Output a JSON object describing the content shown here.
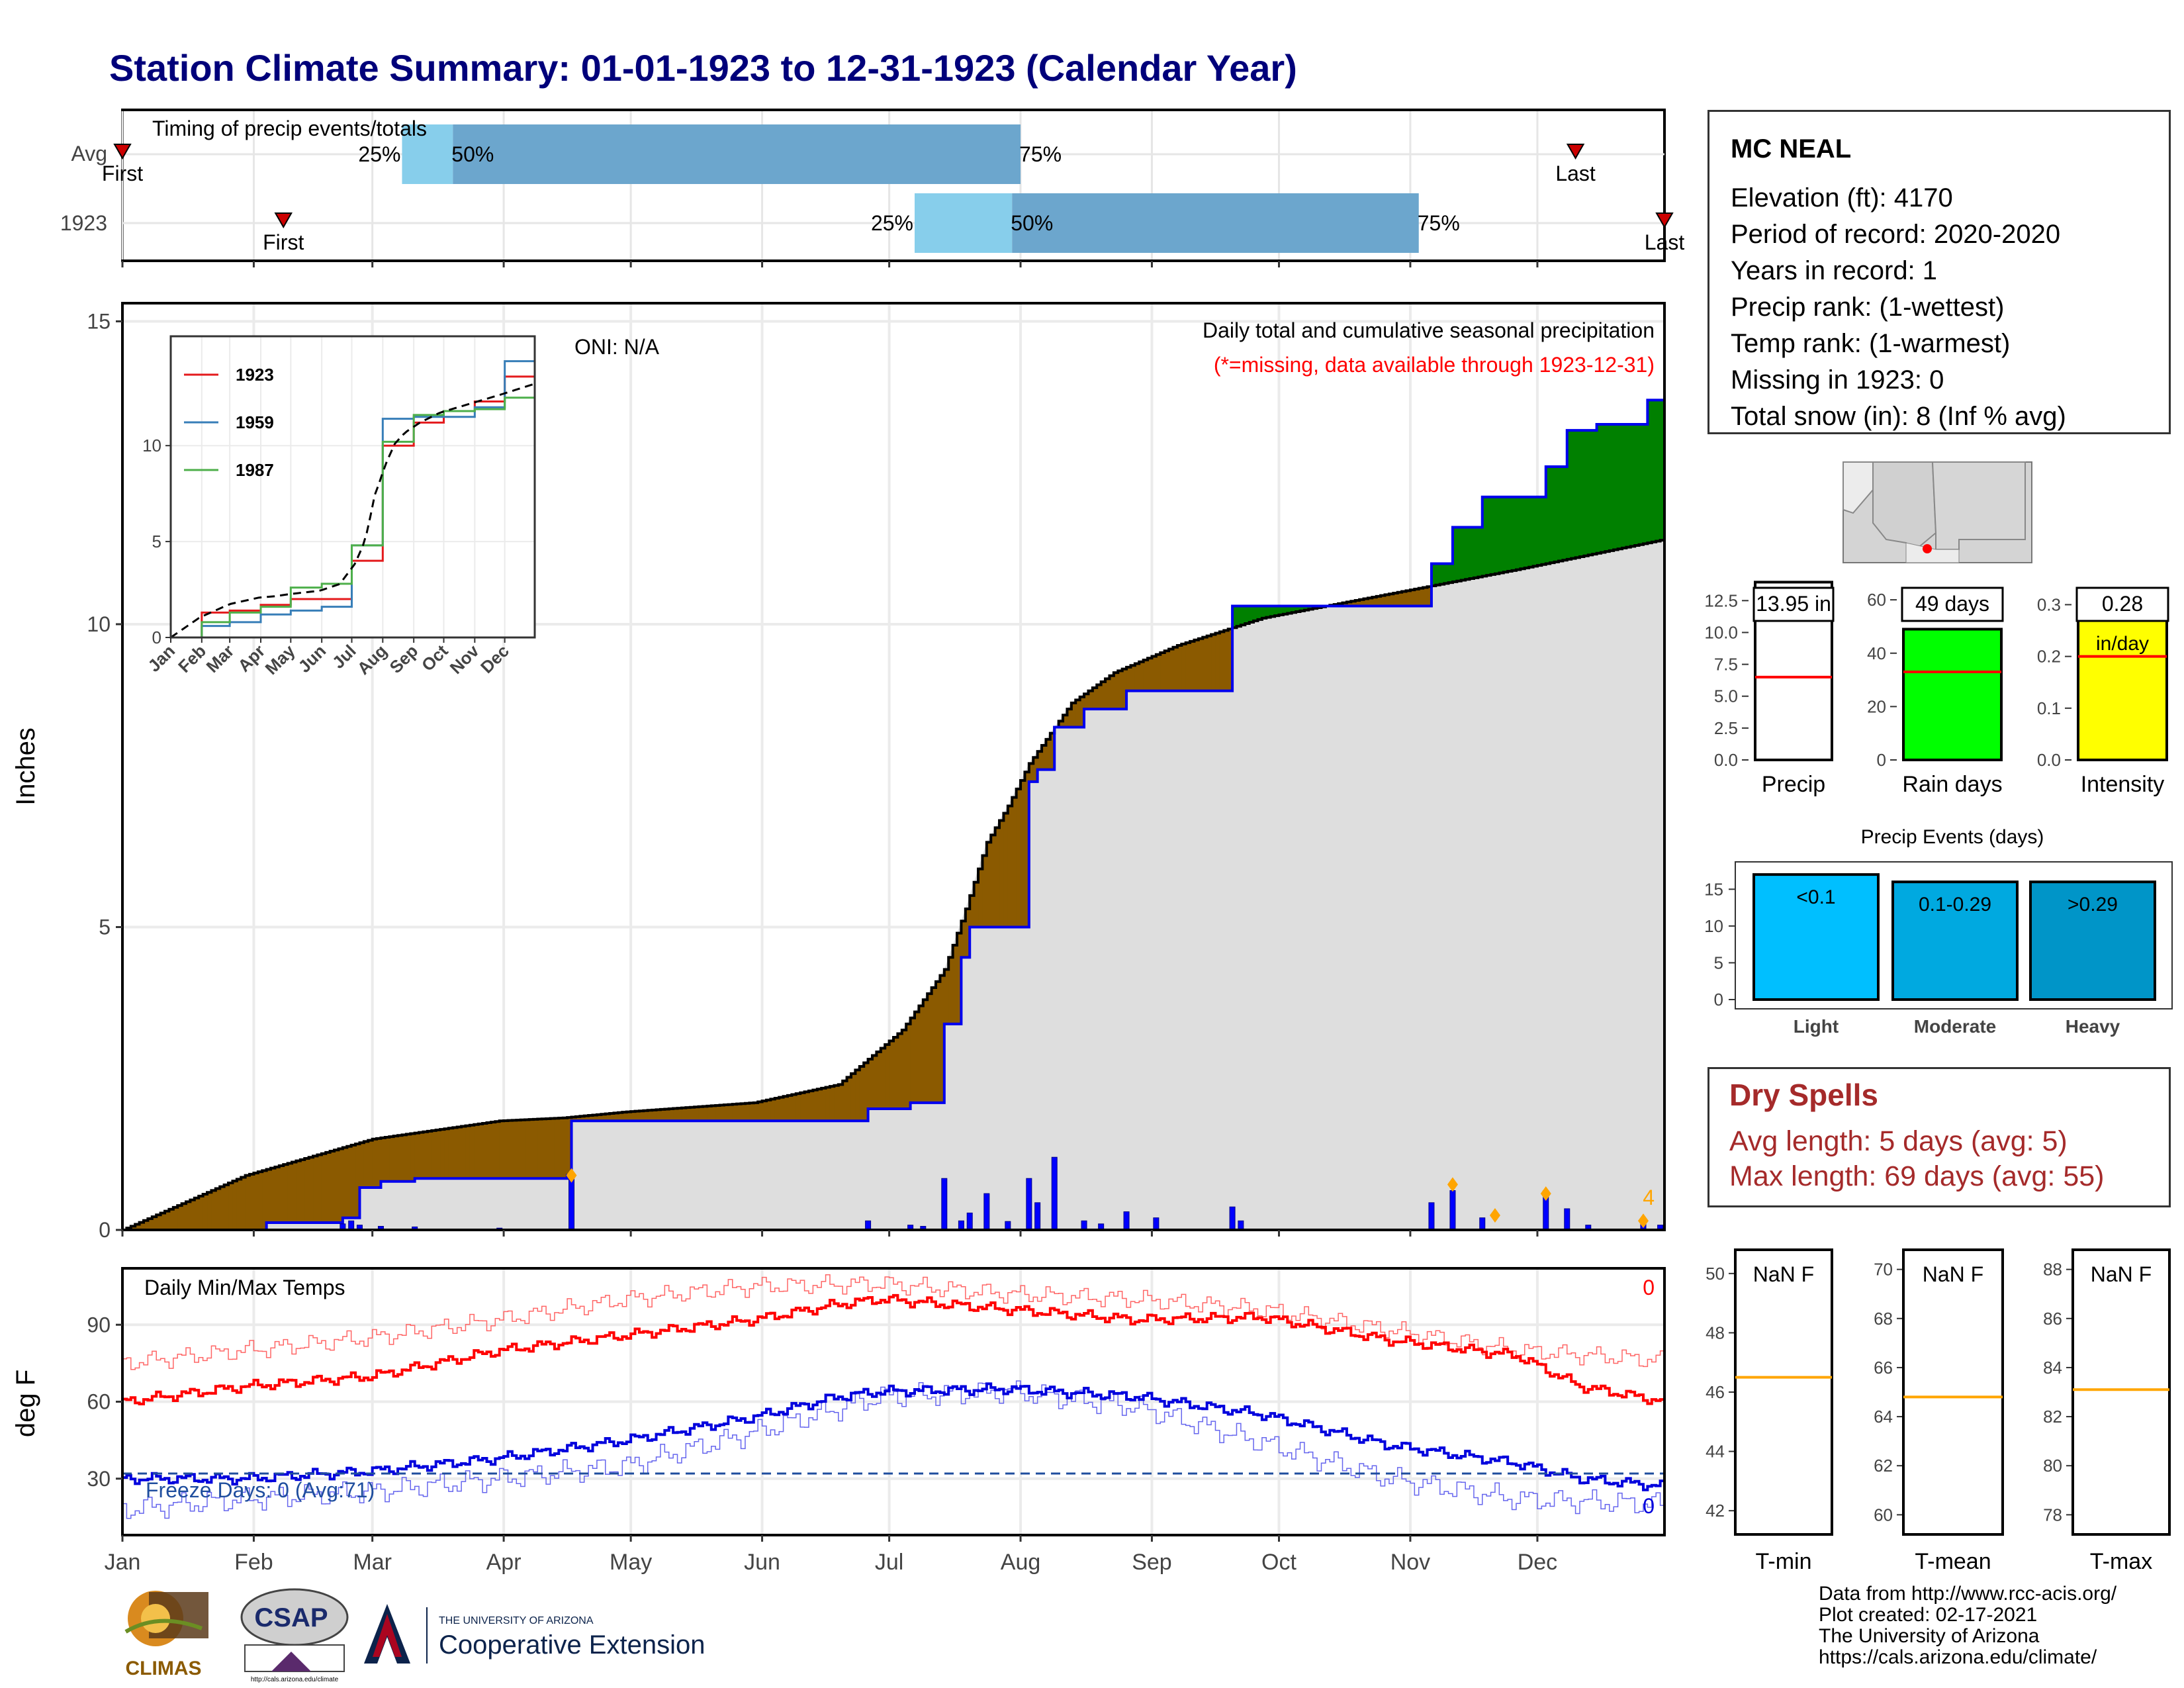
{
  "title": "Station Climate Summary: 01-01-1923 to 12-31-1923 (Calendar Year)",
  "timing_panel": {
    "title": "Timing of precip events/totals",
    "rows": [
      {
        "label": "Avg",
        "first_label": "First",
        "last_label": "Last",
        "first_date": "Jan 1",
        "last_date": "Dec 10",
        "p25_label": "25%",
        "p50_label": "50%",
        "p75_label": "75%",
        "p25": "Mar 8",
        "p50": "Mar 20",
        "p75": "Aug 1"
      },
      {
        "label": "1923",
        "first_label": "First",
        "last_label": "Last",
        "first_date": "Feb 8",
        "last_date": "Dec 31",
        "p25_label": "25%",
        "p50_label": "50%",
        "p75_label": "75%",
        "p25": "Jul 7",
        "p50": "Jul 30",
        "p75": "Nov 3"
      }
    ]
  },
  "precip_panel": {
    "title": "Daily total and cumulative seasonal precipitation",
    "subtitle": "(*=missing, data available through 1923-12-31)",
    "oni": "ONI: N/A",
    "ylabel": "Inches",
    "yticks": [
      "0",
      "5",
      "10",
      "15"
    ],
    "event_count_label": "4",
    "colors": {
      "above": "#008000",
      "below": "#8b5a00",
      "obs_line": "#0000ee",
      "avg_fill": "#dddddd",
      "snow_marker": "#ffa500"
    }
  },
  "inset": {
    "yticks": [
      "0",
      "5",
      "10"
    ],
    "months": [
      "Jan",
      "Feb",
      "Mar",
      "Apr",
      "May",
      "Jun",
      "Jul",
      "Aug",
      "Sep",
      "Oct",
      "Nov",
      "Dec"
    ],
    "legend": [
      {
        "name": "1923",
        "color": "#e41a1c"
      },
      {
        "name": "1959",
        "color": "#377eb8"
      },
      {
        "name": "1987",
        "color": "#4daf4a"
      }
    ]
  },
  "temp_panel": {
    "title": "Daily Min/Max Temps",
    "ylabel": "deg F",
    "yticks": [
      "30",
      "60",
      "90"
    ],
    "freeze_label": "Freeze Days: 0 (Avg:71)",
    "max_count_label": "0",
    "min_count_label": "0",
    "colors": {
      "max": "#ff0000",
      "min": "#0000dd",
      "freeze_line": "#1f4e9e"
    }
  },
  "x_months": [
    "Jan",
    "Feb",
    "Mar",
    "Apr",
    "May",
    "Jun",
    "Jul",
    "Aug",
    "Sep",
    "Oct",
    "Nov",
    "Dec"
  ],
  "station": {
    "name": "MC NEAL",
    "lines": [
      "Elevation (ft): 4170",
      "Period of record: 2020-2020",
      "Years in record: 1",
      "Precip rank:  (1-wettest)",
      "Temp rank:  (1-warmest)",
      "Missing in 1923: 0",
      "Total snow (in): 8 (Inf % avg)"
    ]
  },
  "summary_bars": [
    {
      "label": "Precip",
      "value_label": "13.95 in",
      "value": 13.95,
      "avg": 6.5,
      "yticks": [
        "0.0",
        "2.5",
        "5.0",
        "7.5",
        "10.0",
        "12.5"
      ],
      "ymax": 13.4,
      "color": "#ffffff"
    },
    {
      "label": "Rain days",
      "value_label": "49 days",
      "value": 49,
      "avg": 33,
      "yticks": [
        "0",
        "20",
        "40",
        "60"
      ],
      "ymax": 64,
      "color": "#00ff00"
    },
    {
      "label": "Intensity",
      "value_label": "0.28",
      "unit_label": "in/day",
      "value": 0.28,
      "avg": 0.2,
      "yticks": [
        "0.0",
        "0.1",
        "0.2",
        "0.3"
      ],
      "ymax": 0.33,
      "color": "#ffff00"
    }
  ],
  "events": {
    "title": "Precip Events (days)",
    "yticks": [
      "0",
      "5",
      "10",
      "15"
    ],
    "bars": [
      {
        "category": "Light",
        "label": "<0.1",
        "value": 17,
        "color": "#00bfff"
      },
      {
        "category": "Moderate",
        "label": "0.1-0.29",
        "value": 16,
        "color": "#00a9e0"
      },
      {
        "category": "Heavy",
        "label": ">0.29",
        "value": 16,
        "color": "#0095c8"
      }
    ]
  },
  "dry_spells": {
    "title": "Dry Spells",
    "avg": "Avg length: 5 days (avg: 5)",
    "max": "Max length: 69 days (avg: 55)"
  },
  "temp_boxes": [
    {
      "label": "T-min",
      "value_label": "NaN F",
      "yticks": [
        "42",
        "44",
        "46",
        "48",
        "50"
      ],
      "avg": 46.5
    },
    {
      "label": "T-mean",
      "value_label": "NaN F",
      "yticks": [
        "60",
        "62",
        "64",
        "66",
        "68",
        "70"
      ],
      "avg": 64.8
    },
    {
      "label": "T-max",
      "value_label": "NaN F",
      "yticks": [
        "78",
        "80",
        "82",
        "84",
        "86",
        "88"
      ],
      "avg": 83.1
    }
  ],
  "credits": [
    "Data from http://www.rcc-acis.org/",
    "Plot created: 02-17-2021",
    "The University of Arizona",
    "https://cals.arizona.edu/climate/"
  ],
  "logos": {
    "climas": "CLIMAS",
    "csap": "CSAP",
    "csap_url": "http://cals.arizona.edu/climate",
    "ua_small": "THE UNIVERSITY OF ARIZONA",
    "ua_big": "Cooperative Extension"
  },
  "chart_data": [
    {
      "type": "area",
      "title": "Daily total and cumulative seasonal precipitation",
      "ylabel": "Inches",
      "ylim": [
        0,
        15.3
      ],
      "x_unit": "day of year",
      "avg_cumulative": {
        "x": [
          1,
          30,
          60,
          90,
          105,
          120,
          150,
          170,
          185,
          195,
          200,
          205,
          210,
          215,
          220,
          225,
          235,
          250,
          270,
          300,
          330,
          365
        ],
        "y": [
          0,
          0.9,
          1.5,
          1.8,
          1.85,
          1.95,
          2.1,
          2.4,
          3.3,
          4.3,
          5.3,
          6.4,
          7.0,
          7.7,
          8.2,
          8.7,
          9.2,
          9.65,
          10.1,
          10.5,
          10.9,
          11.4
        ]
      },
      "obs_cumulative": {
        "x": [
          1,
          35,
          53,
          57,
          62,
          70,
          106,
          107,
          177,
          187,
          195,
          199,
          201,
          205,
          215,
          217,
          221,
          228,
          238,
          263,
          310,
          315,
          322,
          337,
          342,
          349,
          361,
          365
        ],
        "y": [
          0,
          0.12,
          0.2,
          0.7,
          0.8,
          0.85,
          0.9,
          1.8,
          2.0,
          2.1,
          3.4,
          4.5,
          5.0,
          5.0,
          7.4,
          7.6,
          8.3,
          8.6,
          8.9,
          10.3,
          11.0,
          11.6,
          12.1,
          12.6,
          13.2,
          13.3,
          13.7,
          13.9
        ]
      },
      "daily_x": [
        53,
        55,
        57,
        62,
        70,
        90,
        107,
        177,
        187,
        190,
        195,
        199,
        201,
        205,
        210,
        215,
        217,
        221,
        228,
        232,
        238,
        245,
        263,
        265,
        310,
        315,
        322,
        337,
        342,
        347,
        360,
        364
      ],
      "daily_y": [
        0.1,
        0.15,
        0.08,
        0.06,
        0.05,
        0.03,
        0.9,
        0.15,
        0.08,
        0.06,
        0.85,
        0.15,
        0.28,
        0.6,
        0.14,
        0.85,
        0.45,
        1.2,
        0.15,
        0.1,
        0.3,
        0.2,
        0.38,
        0.15,
        0.45,
        0.65,
        0.2,
        0.65,
        0.35,
        0.08,
        0.1,
        0.08
      ],
      "snow_x": [
        107,
        315,
        325,
        337,
        360
      ],
      "snow_y": [
        0.9,
        0.75,
        0.24,
        0.6,
        0.15
      ]
    },
    {
      "type": "line",
      "title": "Daily Min/Max Temps",
      "ylabel": "deg F",
      "ylim": [
        8,
        112
      ],
      "max_x": [
        1,
        30,
        60,
        90,
        120,
        150,
        170,
        180,
        210,
        240,
        270,
        300,
        330,
        345,
        365
      ],
      "max_y": [
        60,
        66,
        70,
        80,
        86,
        92,
        98,
        100,
        96,
        92,
        93,
        84,
        78,
        66,
        60
      ],
      "min_x": [
        1,
        30,
        60,
        90,
        120,
        150,
        170,
        180,
        210,
        240,
        270,
        300,
        330,
        345,
        365
      ],
      "min_y": [
        30,
        30,
        33,
        38,
        45,
        54,
        62,
        64,
        65,
        62,
        55,
        43,
        36,
        30,
        27
      ],
      "max_avg_x": [
        1,
        30,
        60,
        90,
        120,
        150,
        180,
        210,
        240,
        270,
        300,
        330,
        365
      ],
      "max_avg_y": [
        75,
        80,
        85,
        92,
        100,
        105,
        106,
        102,
        100,
        96,
        88,
        80,
        76
      ],
      "min_avg_x": [
        1,
        30,
        60,
        90,
        120,
        150,
        180,
        210,
        240,
        270,
        300,
        330,
        365
      ],
      "min_avg_y": [
        18,
        22,
        25,
        30,
        35,
        48,
        62,
        64,
        58,
        44,
        30,
        22,
        20
      ],
      "freeze_line": 32
    }
  ]
}
